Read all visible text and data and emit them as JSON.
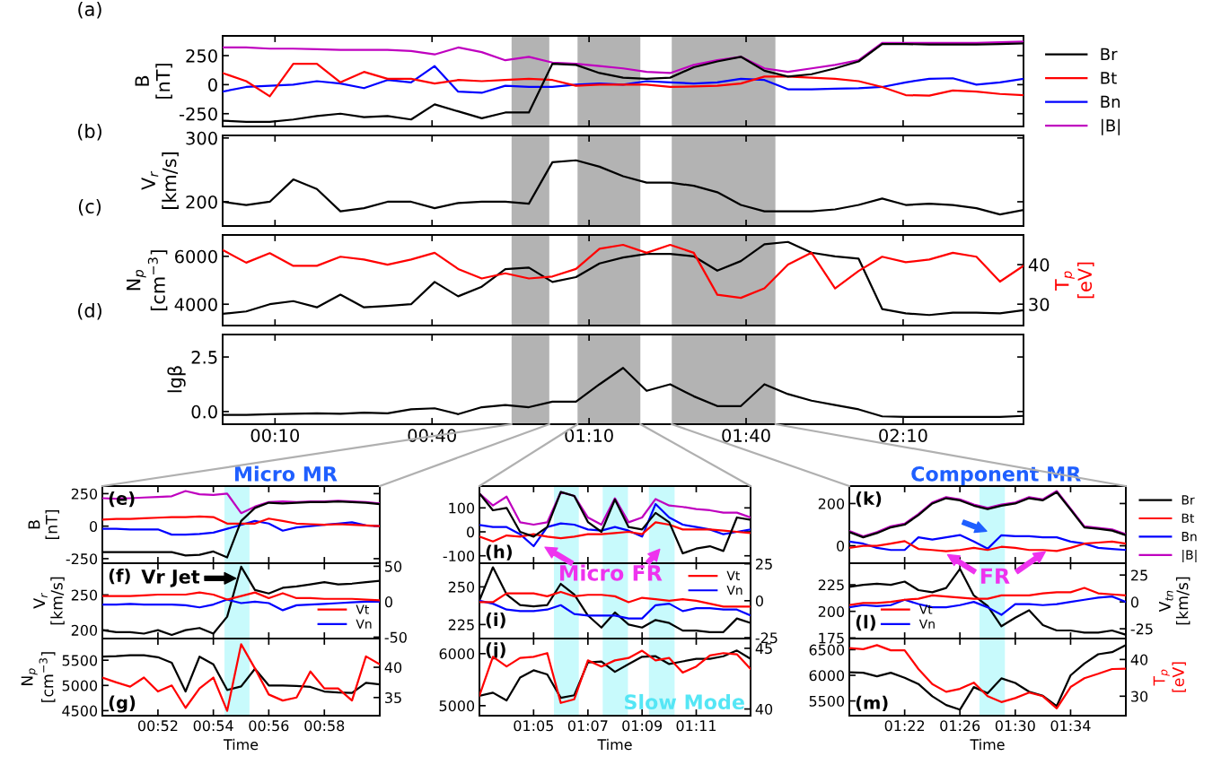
{
  "chart_data": [
    {
      "type": "line",
      "ylabel": "B\n[nT]",
      "annotations": [
        "(a)"
      ],
      "x": [
        0,
        0.075,
        0.15,
        0.225,
        0.3,
        0.375,
        0.45,
        0.525,
        0.6,
        0.675,
        0.75,
        0.825,
        0.9,
        0.975,
        1.05,
        1.125,
        1.2,
        1.275,
        1.35,
        1.425,
        1.5,
        1.575,
        1.65,
        1.725,
        1.8,
        1.875,
        1.95,
        2.025,
        2.1,
        2.175,
        2.25,
        2.325,
        2.4,
        2.475,
        2.55
      ],
      "xlim": [
        0,
        2.55
      ],
      "xticks": [
        {
          "value": 0.1667,
          "label": null
        },
        {
          "value": 0.6667,
          "label": null
        },
        {
          "value": 1.1667,
          "label": null
        },
        {
          "value": 1.6667,
          "label": null
        },
        {
          "value": 2.1667,
          "label": null
        }
      ],
      "ylim": [
        -360,
        420
      ],
      "yticks": [
        -250,
        0,
        250
      ],
      "tick_labels": "y",
      "legend": "right",
      "bands": [
        {
          "axis": "x",
          "from": 0.92,
          "to": 1.04,
          "color": "#b3b3b3"
        },
        {
          "axis": "x",
          "from": 1.13,
          "to": 1.33,
          "color": "#b3b3b3"
        },
        {
          "axis": "x",
          "from": 1.43,
          "to": 1.76,
          "color": "#b3b3b3"
        }
      ],
      "series": [
        {
          "name": "Br",
          "color": "#000000",
          "values": [
            -310,
            -320,
            -320,
            -300,
            -270,
            -250,
            -280,
            -270,
            -300,
            -170,
            -230,
            -290,
            -240,
            -240,
            180,
            170,
            100,
            60,
            50,
            60,
            150,
            200,
            240,
            120,
            70,
            90,
            140,
            200,
            350,
            350,
            345,
            345,
            345,
            350,
            355
          ]
        },
        {
          "name": "Bt",
          "color": "#ff0000",
          "values": [
            100,
            30,
            -100,
            180,
            180,
            20,
            110,
            50,
            50,
            10,
            40,
            30,
            40,
            50,
            40,
            -10,
            0,
            0,
            0,
            -20,
            -15,
            -10,
            10,
            70,
            70,
            60,
            50,
            30,
            -20,
            -90,
            -95,
            -50,
            -60,
            -80,
            -90
          ]
        },
        {
          "name": "Bn",
          "color": "#0000ff",
          "values": [
            -60,
            -20,
            -10,
            0,
            30,
            10,
            -30,
            40,
            20,
            160,
            -60,
            -70,
            -10,
            -20,
            -20,
            0,
            10,
            0,
            30,
            20,
            10,
            20,
            50,
            40,
            -40,
            -40,
            -35,
            -30,
            -20,
            20,
            50,
            55,
            0,
            20,
            50
          ]
        },
        {
          "name": "|B|",
          "color": "#bf00bf",
          "values": [
            320,
            320,
            310,
            310,
            305,
            300,
            300,
            300,
            290,
            260,
            320,
            280,
            210,
            240,
            190,
            180,
            160,
            140,
            110,
            100,
            170,
            210,
            240,
            140,
            110,
            140,
            170,
            210,
            360,
            360,
            360,
            360,
            360,
            365,
            370
          ]
        }
      ]
    },
    {
      "type": "line",
      "ylabel": "V$_{r}$\n[km/s]",
      "annotations": [
        "(b)"
      ],
      "x": [
        0,
        0.075,
        0.15,
        0.225,
        0.3,
        0.375,
        0.45,
        0.525,
        0.6,
        0.675,
        0.75,
        0.825,
        0.9,
        0.975,
        1.05,
        1.125,
        1.2,
        1.275,
        1.35,
        1.425,
        1.5,
        1.575,
        1.65,
        1.725,
        1.8,
        1.875,
        1.95,
        2.025,
        2.1,
        2.175,
        2.25,
        2.325,
        2.4,
        2.475,
        2.55
      ],
      "xlim": [
        0,
        2.55
      ],
      "xticks": [
        {
          "value": 0.1667,
          "label": null
        },
        {
          "value": 0.6667,
          "label": null
        },
        {
          "value": 1.1667,
          "label": null
        },
        {
          "value": 1.6667,
          "label": null
        },
        {
          "value": 2.1667,
          "label": null
        }
      ],
      "ylim": [
        162,
        304
      ],
      "yticks": [
        200,
        300
      ],
      "tick_labels": "y",
      "bands": [
        {
          "axis": "x",
          "from": 0.92,
          "to": 1.04,
          "color": "#b3b3b3"
        },
        {
          "axis": "x",
          "from": 1.13,
          "to": 1.33,
          "color": "#b3b3b3"
        },
        {
          "axis": "x",
          "from": 1.43,
          "to": 1.76,
          "color": "#b3b3b3"
        }
      ],
      "series": [
        {
          "color": "#000000",
          "values": [
            200,
            195,
            200,
            235,
            220,
            185,
            190,
            200,
            200,
            190,
            198,
            200,
            200,
            197,
            262,
            265,
            255,
            240,
            230,
            230,
            225,
            215,
            195,
            185,
            185,
            185,
            188,
            195,
            205,
            195,
            197,
            195,
            190,
            180,
            187
          ]
        }
      ]
    },
    {
      "type": "line",
      "ylabel": "N$_{p}$\n[cm$^{−3}$]",
      "y2label": "T$_{p}$\n[eV]",
      "annotations": [
        "(c)"
      ],
      "x": [
        0,
        0.075,
        0.15,
        0.225,
        0.3,
        0.375,
        0.45,
        0.525,
        0.6,
        0.675,
        0.75,
        0.825,
        0.9,
        0.975,
        1.05,
        1.125,
        1.2,
        1.275,
        1.35,
        1.425,
        1.5,
        1.575,
        1.65,
        1.725,
        1.8,
        1.875,
        1.95,
        2.025,
        2.1,
        2.175,
        2.25,
        2.325,
        2.4,
        2.475,
        2.55
      ],
      "xlim": [
        0,
        2.55
      ],
      "xticks": [
        {
          "value": 0.1667,
          "label": null
        },
        {
          "value": 0.6667,
          "label": null
        },
        {
          "value": 1.1667,
          "label": null
        },
        {
          "value": 1.6667,
          "label": null
        },
        {
          "value": 2.1667,
          "label": null
        }
      ],
      "ylim": [
        3110,
        6890
      ],
      "yticks": [
        4000,
        6000
      ],
      "y2lim": [
        24.6,
        47.5
      ],
      "y2ticks": [
        30,
        40
      ],
      "tick_labels": "y",
      "bands": [
        {
          "axis": "x",
          "from": 0.92,
          "to": 1.04,
          "color": "#b3b3b3"
        },
        {
          "axis": "x",
          "from": 1.13,
          "to": 1.33,
          "color": "#b3b3b3"
        },
        {
          "axis": "x",
          "from": 1.43,
          "to": 1.76,
          "color": "#b3b3b3"
        }
      ],
      "series": [
        {
          "color": "#000000",
          "values": [
            3600,
            3700,
            4000,
            4130,
            3870,
            4400,
            3870,
            3930,
            4000,
            4930,
            4330,
            4730,
            5460,
            5530,
            4930,
            5130,
            5700,
            5950,
            6100,
            6100,
            6000,
            5400,
            5800,
            6500,
            6600,
            6150,
            6000,
            5900,
            3800,
            3620,
            3550,
            3650,
            3650,
            3620,
            3750
          ]
        },
        {
          "color": "#ff0000",
          "axis": "y2",
          "values": [
            43.7,
            40.5,
            42.9,
            39.7,
            39.7,
            42,
            41.3,
            40,
            41.3,
            43,
            38.9,
            36.5,
            37.8,
            36.5,
            37,
            38.9,
            44,
            45,
            43,
            45,
            43,
            32.4,
            31.6,
            34,
            40,
            43,
            34,
            38.4,
            42,
            40.6,
            41.3,
            43,
            42,
            35.7,
            39.7
          ]
        }
      ]
    },
    {
      "type": "line",
      "ylabel": "lgβ",
      "annotations": [
        "(d)"
      ],
      "x": [
        0,
        0.075,
        0.15,
        0.225,
        0.3,
        0.375,
        0.45,
        0.525,
        0.6,
        0.675,
        0.75,
        0.825,
        0.9,
        0.975,
        1.05,
        1.125,
        1.2,
        1.275,
        1.35,
        1.425,
        1.5,
        1.575,
        1.65,
        1.725,
        1.8,
        1.875,
        1.95,
        2.025,
        2.1,
        2.175,
        2.25,
        2.325,
        2.4,
        2.475,
        2.55
      ],
      "xlim": [
        0,
        2.55
      ],
      "xticks": [
        {
          "value": 0.1667,
          "label": "00:10"
        },
        {
          "value": 0.6667,
          "label": "00:40"
        },
        {
          "value": 1.1667,
          "label": "01:10"
        },
        {
          "value": 1.6667,
          "label": "01:40"
        },
        {
          "value": 2.1667,
          "label": "02:10"
        }
      ],
      "ylim": [
        -0.58,
        3.53
      ],
      "yticks": [
        {
          "value": 0,
          "label": "0.0"
        },
        {
          "value": 2.5,
          "label": "2.5"
        }
      ],
      "bands": [
        {
          "axis": "x",
          "from": 0.92,
          "to": 1.04,
          "color": "#b3b3b3"
        },
        {
          "axis": "x",
          "from": 1.13,
          "to": 1.33,
          "color": "#b3b3b3"
        },
        {
          "axis": "x",
          "from": 1.43,
          "to": 1.76,
          "color": "#b3b3b3"
        }
      ],
      "series": [
        {
          "color": "#000000",
          "values": [
            -0.15,
            -0.15,
            -0.12,
            -0.1,
            -0.08,
            -0.1,
            -0.05,
            -0.08,
            0.1,
            0.15,
            -0.12,
            0.2,
            0.3,
            0.2,
            0.45,
            0.45,
            1.25,
            2.0,
            0.95,
            1.25,
            0.7,
            0.25,
            0.25,
            1.25,
            0.8,
            0.5,
            0.3,
            0.1,
            -0.22,
            -0.25,
            -0.25,
            -0.25,
            -0.25,
            -0.25,
            -0.2
          ]
        }
      ]
    },
    {
      "type": "line",
      "title": "Micro MR",
      "ylabel": "B\n[nT]",
      "annotations": [
        "(e)"
      ],
      "x": [
        0.8333,
        0.8417,
        0.85,
        0.8583,
        0.8667,
        0.875,
        0.8833,
        0.8917,
        0.9,
        0.9083,
        0.9167,
        0.925,
        0.9333,
        0.9417,
        0.95,
        0.9583,
        0.9667,
        0.975,
        0.9833,
        0.9917,
        1.0
      ],
      "xlim": [
        0.8333,
        1.0
      ],
      "xticks": [
        {
          "value": 0.8667,
          "label": null
        },
        {
          "value": 0.9,
          "label": null
        },
        {
          "value": 0.9333,
          "label": null
        },
        {
          "value": 0.9667,
          "label": null
        }
      ],
      "ylim": [
        -285,
        308
      ],
      "yticks": [
        -250,
        0,
        250
      ],
      "tick_labels": "y",
      "bands": [
        {
          "axis": "x",
          "from": 0.9067,
          "to": 0.9217,
          "color": "#c8fafc"
        }
      ],
      "series": [
        {
          "color": "#000000",
          "values": [
            -200,
            -200,
            -200,
            -200,
            -200,
            -200,
            -225,
            -220,
            -195,
            -240,
            40,
            140,
            180,
            175,
            180,
            185,
            185,
            190,
            185,
            180,
            170
          ]
        },
        {
          "color": "#ff0000",
          "values": [
            50,
            55,
            55,
            60,
            65,
            70,
            70,
            75,
            70,
            20,
            20,
            20,
            58,
            40,
            20,
            15,
            10,
            15,
            10,
            5,
            0
          ]
        },
        {
          "color": "#0000ff",
          "values": [
            -20,
            -20,
            -25,
            -25,
            -25,
            -65,
            -65,
            -60,
            -50,
            -20,
            10,
            40,
            20,
            -35,
            -10,
            0,
            10,
            20,
            30,
            5,
            0
          ]
        },
        {
          "color": "#bf00bf",
          "values": [
            215,
            210,
            215,
            220,
            225,
            230,
            270,
            245,
            240,
            250,
            100,
            150,
            185,
            190,
            185,
            190,
            190,
            195,
            190,
            185,
            175
          ]
        }
      ]
    },
    {
      "type": "line",
      "annotations": [
        "(h)",
        "Micro FR"
      ],
      "x": [
        1.05,
        1.0583,
        1.0667,
        1.075,
        1.0833,
        1.0917,
        1.1,
        1.1083,
        1.1167,
        1.125,
        1.1333,
        1.1417,
        1.15,
        1.1583,
        1.1667,
        1.175,
        1.1833,
        1.1917,
        1.2,
        1.2083,
        1.2167
      ],
      "xlim": [
        1.05,
        1.2167
      ],
      "xticks": [
        {
          "value": 1.0833,
          "label": null
        },
        {
          "value": 1.1167,
          "label": null
        },
        {
          "value": 1.15,
          "label": null
        },
        {
          "value": 1.1833,
          "label": null
        }
      ],
      "ylim": [
        -131,
        191
      ],
      "yticks": [
        -100,
        0,
        100
      ],
      "tick_labels": "y",
      "bands": [
        {
          "axis": "x",
          "from": 1.0958,
          "to": 1.1111,
          "color": "#c8fafc"
        },
        {
          "axis": "x",
          "from": 1.1258,
          "to": 1.1413,
          "color": "#c8fafc"
        },
        {
          "axis": "x",
          "from": 1.1542,
          "to": 1.17,
          "color": "#c8fafc"
        }
      ],
      "series": [
        {
          "color": "#000000",
          "values": [
            160,
            90,
            100,
            0,
            -20,
            20,
            166,
            150,
            41,
            0,
            135,
            20,
            10,
            79,
            40,
            -90,
            -70,
            -60,
            -80,
            60,
            50
          ]
        },
        {
          "color": "#ff0000",
          "values": [
            -20,
            -40,
            -15,
            -20,
            -10,
            -20,
            -27,
            -20,
            -10,
            -10,
            -5,
            0,
            -10,
            40,
            30,
            10,
            10,
            10,
            5,
            0,
            -5
          ]
        },
        {
          "color": "#0000ff",
          "values": [
            29,
            20,
            20,
            -10,
            -60,
            20,
            35,
            30,
            10,
            5,
            20,
            5,
            -20,
            116,
            60,
            30,
            20,
            10,
            -10,
            0,
            10
          ]
        },
        {
          "color": "#bf00bf",
          "values": [
            160,
            110,
            147,
            40,
            30,
            40,
            166,
            150,
            60,
            30,
            140,
            40,
            60,
            137,
            110,
            104,
            95,
            90,
            80,
            80,
            60
          ]
        }
      ]
    },
    {
      "type": "line",
      "title": "Component MR",
      "annotations": [
        "(k)",
        "FR"
      ],
      "x": [
        1.3,
        1.3167,
        1.3333,
        1.35,
        1.3667,
        1.3833,
        1.4,
        1.4167,
        1.4333,
        1.45,
        1.4667,
        1.4833,
        1.5,
        1.5167,
        1.5333,
        1.55,
        1.5667,
        1.5833,
        1.6,
        1.6167,
        1.6333
      ],
      "xlim": [
        1.3,
        1.6333
      ],
      "xticks": [
        {
          "value": 1.3667,
          "label": null
        },
        {
          "value": 1.4333,
          "label": null
        },
        {
          "value": 1.5,
          "label": null
        },
        {
          "value": 1.5667,
          "label": null
        }
      ],
      "ylim": [
        -82.6,
        282.6
      ],
      "yticks": [
        0,
        200
      ],
      "tick_labels": "y",
      "legend": "right",
      "bands": [
        {
          "axis": "x",
          "from": 1.4569,
          "to": 1.4875,
          "color": "#c8fafc"
        }
      ],
      "series": [
        {
          "name": "Br",
          "color": "#000000",
          "values": [
            65,
            40,
            60,
            87,
            100,
            145,
            200,
            225,
            215,
            190,
            174,
            190,
            200,
            225,
            215,
            254,
            171,
            87,
            80,
            72,
            50
          ]
        },
        {
          "name": "Bt",
          "color": "#ff0000",
          "values": [
            -10,
            0,
            0,
            10,
            22,
            -15,
            -20,
            -26,
            -20,
            -10,
            -20,
            -5,
            -10,
            -20,
            -20,
            -25,
            -10,
            10,
            15,
            20,
            10
          ]
        },
        {
          "name": "Bn",
          "color": "#0000ff",
          "values": [
            20,
            10,
            -10,
            -20,
            -20,
            40,
            29,
            40,
            51,
            20,
            -14,
            50,
            45,
            45,
            40,
            40,
            20,
            10,
            -10,
            -15,
            -20
          ]
        },
        {
          "name": "|B|",
          "color": "#bf00bf",
          "values": [
            70,
            45,
            65,
            92,
            105,
            150,
            205,
            230,
            220,
            195,
            179,
            195,
            205,
            230,
            220,
            259,
            176,
            92,
            85,
            77,
            55
          ]
        }
      ]
    },
    {
      "type": "line",
      "ylabel": "V$_{r}$\n[km/s]",
      "annotations": [
        "(f)",
        "Vr Jet"
      ],
      "x": [
        0.8333,
        0.8417,
        0.85,
        0.8583,
        0.8667,
        0.875,
        0.8833,
        0.8917,
        0.9,
        0.9083,
        0.9167,
        0.925,
        0.9333,
        0.9417,
        0.95,
        0.9583,
        0.9667,
        0.975,
        0.9833,
        0.9917,
        1.0
      ],
      "xlim": [
        0.8333,
        1.0
      ],
      "xticks": [
        {
          "value": 0.8667,
          "label": null
        },
        {
          "value": 0.9,
          "label": null
        },
        {
          "value": 0.9333,
          "label": null
        },
        {
          "value": 0.9667,
          "label": null
        }
      ],
      "ylim": [
        188,
        295
      ],
      "yticks": [
        200,
        250
      ],
      "y2lim": [
        -52,
        54.3
      ],
      "y2ticks": [
        -50,
        0,
        50
      ],
      "tick_labels": "y",
      "legend": "bottom right",
      "bands": [
        {
          "axis": "x",
          "from": 0.9067,
          "to": 0.9217,
          "color": "#c8fafc"
        }
      ],
      "series": [
        {
          "color": "#000000",
          "values": [
            200,
            197,
            197,
            195,
            200,
            193,
            200,
            203,
            195,
            219,
            290,
            257,
            252,
            260,
            262,
            265,
            268,
            265,
            266,
            268,
            270
          ]
        },
        {
          "name": "Vt",
          "color": "#ff0000",
          "axis": "y2",
          "values": [
            8,
            8,
            8,
            9,
            10,
            10,
            10,
            13,
            10,
            3,
            8,
            13,
            5,
            12,
            5,
            5,
            4,
            4,
            4,
            3,
            2
          ]
        },
        {
          "name": "Vn",
          "color": "#0000ff",
          "axis": "y2",
          "values": [
            -4,
            -4,
            -3,
            -4,
            -4,
            -4,
            -5,
            -8,
            -4,
            3,
            -2,
            0,
            -2,
            -12,
            -5,
            -4,
            -3,
            -2,
            -1,
            0,
            0
          ]
        }
      ]
    },
    {
      "type": "line",
      "annotations": [
        "(i)"
      ],
      "x": [
        1.05,
        1.0583,
        1.0667,
        1.075,
        1.0833,
        1.0917,
        1.1,
        1.1083,
        1.1167,
        1.125,
        1.1333,
        1.1417,
        1.15,
        1.1583,
        1.1667,
        1.175,
        1.1833,
        1.1917,
        1.2,
        1.2083,
        1.2167
      ],
      "xlim": [
        1.05,
        1.2167
      ],
      "xticks": [
        {
          "value": 1.0833,
          "label": null
        },
        {
          "value": 1.1167,
          "label": null
        },
        {
          "value": 1.15,
          "label": null
        },
        {
          "value": 1.1833,
          "label": null
        }
      ],
      "ylim": [
        215.7,
        265.7
      ],
      "yticks": [
        225,
        250
      ],
      "y2lim": [
        -25.6,
        25.4
      ],
      "y2ticks": [
        -25,
        0,
        25
      ],
      "tick_labels": "y",
      "legend": "top right",
      "bands": [
        {
          "axis": "x",
          "from": 1.0958,
          "to": 1.1111,
          "color": "#c8fafc"
        },
        {
          "axis": "x",
          "from": 1.1258,
          "to": 1.1413,
          "color": "#c8fafc"
        },
        {
          "axis": "x",
          "from": 1.1542,
          "to": 1.17,
          "color": "#c8fafc"
        }
      ],
      "series": [
        {
          "color": "#000000",
          "values": [
            241,
            263,
            245,
            238,
            237,
            238,
            252,
            245,
            231,
            223,
            233,
            225,
            223,
            228,
            226,
            221,
            221,
            220,
            220,
            229,
            226
          ]
        },
        {
          "name": "Vt",
          "color": "#ff0000",
          "axis": "y2",
          "values": [
            -1,
            -1,
            5,
            5,
            5,
            3,
            6,
            3,
            4,
            4,
            3,
            -1,
            2,
            1,
            0,
            1,
            0,
            -2,
            -4,
            -4,
            -4
          ]
        },
        {
          "name": "Vn",
          "color": "#0000ff",
          "axis": "y2",
          "values": [
            0,
            -2,
            -6,
            -7,
            -7,
            -6,
            -3,
            -9,
            -10,
            -10,
            -10,
            -12,
            -12,
            -3,
            -2,
            -7,
            -5,
            -5,
            -6,
            -6,
            -10
          ]
        }
      ]
    },
    {
      "type": "line",
      "y2label": "V$_{tn}$\n[km/s]",
      "annotations": [
        "(l)"
      ],
      "x": [
        1.3,
        1.3167,
        1.3333,
        1.35,
        1.3667,
        1.3833,
        1.4,
        1.4167,
        1.4333,
        1.45,
        1.4667,
        1.4833,
        1.5,
        1.5167,
        1.5333,
        1.55,
        1.5667,
        1.5833,
        1.6,
        1.6167,
        1.6333
      ],
      "xlim": [
        1.3,
        1.6333
      ],
      "xticks": [
        {
          "value": 1.3667,
          "label": null
        },
        {
          "value": 1.4333,
          "label": null
        },
        {
          "value": 1.5,
          "label": null
        },
        {
          "value": 1.5667,
          "label": null
        }
      ],
      "ylim": [
        174.4,
        245.3
      ],
      "yticks": [
        175,
        200,
        225
      ],
      "y2lim": [
        -34.1,
        36
      ],
      "y2ticks": [
        -25,
        0,
        25
      ],
      "tick_labels": "y",
      "legend": "bottom left",
      "bands": [
        {
          "axis": "x",
          "from": 1.4569,
          "to": 1.4875,
          "color": "#c8fafc"
        }
      ],
      "series": [
        {
          "color": "#000000",
          "values": [
            223,
            225,
            226,
            225,
            228,
            220,
            218,
            222,
            240,
            215,
            205,
            186,
            194,
            201,
            187,
            182,
            182,
            180,
            180,
            182,
            178
          ]
        },
        {
          "name": "Vt",
          "color": "#ff0000",
          "axis": "y2",
          "values": [
            -3,
            -1,
            -1,
            0,
            2,
            3,
            6,
            5,
            4,
            3,
            3,
            6,
            6,
            6,
            8,
            9,
            9,
            13,
            8,
            7,
            6
          ]
        },
        {
          "name": "Vn",
          "color": "#0000ff",
          "axis": "y2",
          "values": [
            -5,
            -3,
            -4,
            -3,
            2,
            -2,
            -5,
            -5,
            -3,
            0,
            -5,
            -12,
            -2,
            -2,
            -3,
            -2,
            0,
            2,
            4,
            5,
            0
          ]
        }
      ]
    },
    {
      "type": "line",
      "ylabel": "N$_{p}$\n[cm$^{−3}$]",
      "xlabel": "Time",
      "annotations": [
        "(g)"
      ],
      "x": [
        0.8333,
        0.8417,
        0.85,
        0.8583,
        0.8667,
        0.875,
        0.8833,
        0.8917,
        0.9,
        0.9083,
        0.9167,
        0.925,
        0.9333,
        0.9417,
        0.95,
        0.9583,
        0.9667,
        0.975,
        0.9833,
        0.9917,
        1.0
      ],
      "xlim": [
        0.8333,
        1.0
      ],
      "xticks": [
        {
          "value": 0.8667,
          "label": "00:52"
        },
        {
          "value": 0.9,
          "label": "00:54"
        },
        {
          "value": 0.9333,
          "label": "00:56"
        },
        {
          "value": 0.9667,
          "label": "00:58"
        }
      ],
      "ylim": [
        4400,
        5930
      ],
      "yticks": [
        4500,
        5000,
        5500
      ],
      "y2lim": [
        32,
        44.75
      ],
      "y2ticks": [
        35,
        40
      ],
      "bands": [
        {
          "axis": "x",
          "from": 0.9067,
          "to": 0.9217,
          "color": "#c8fafc"
        }
      ],
      "series": [
        {
          "color": "#000000",
          "values": [
            5570,
            5580,
            5600,
            5600,
            5560,
            5450,
            4880,
            5570,
            5420,
            4910,
            4980,
            5330,
            5000,
            5000,
            4990,
            4970,
            4880,
            4860,
            4850,
            5050,
            5020
          ]
        },
        {
          "color": "#ff0000",
          "axis": "y2",
          "values": [
            38.3,
            37.5,
            36.8,
            38.3,
            36,
            37,
            33.3,
            36.5,
            38.3,
            32.8,
            43.8,
            39.8,
            35.5,
            34.5,
            35,
            39.3,
            36.5,
            36.5,
            34.5,
            41.8,
            40.5
          ]
        }
      ]
    },
    {
      "type": "line",
      "xlabel": "Time",
      "annotations": [
        "(j)",
        "Slow Mode"
      ],
      "x": [
        1.05,
        1.0583,
        1.0667,
        1.075,
        1.0833,
        1.0917,
        1.1,
        1.1083,
        1.1167,
        1.125,
        1.1333,
        1.1417,
        1.15,
        1.1583,
        1.1667,
        1.175,
        1.1833,
        1.1917,
        1.2,
        1.2083,
        1.2167
      ],
      "xlim": [
        1.05,
        1.2167
      ],
      "xticks": [
        {
          "value": 1.0833,
          "label": "01:05"
        },
        {
          "value": 1.1167,
          "label": "01:07"
        },
        {
          "value": 1.15,
          "label": "01:09"
        },
        {
          "value": 1.1833,
          "label": "01:11"
        }
      ],
      "ylim": [
        4808,
        6290
      ],
      "yticks": [
        5000,
        6000
      ],
      "y2lim": [
        39.45,
        45.8
      ],
      "y2ticks": [
        40,
        45
      ],
      "bands": [
        {
          "axis": "x",
          "from": 1.0958,
          "to": 1.1111,
          "color": "#c8fafc"
        },
        {
          "axis": "x",
          "from": 1.1258,
          "to": 1.1413,
          "color": "#c8fafc"
        },
        {
          "axis": "x",
          "from": 1.1542,
          "to": 1.17,
          "color": "#c8fafc"
        }
      ],
      "series": [
        {
          "color": "#000000",
          "values": [
            5190,
            5250,
            5100,
            5540,
            5680,
            5600,
            5150,
            5200,
            5830,
            5850,
            5650,
            5800,
            5940,
            5950,
            5800,
            5850,
            5900,
            5900,
            5950,
            6060,
            5900
          ]
        },
        {
          "color": "#ff0000",
          "axis": "y2",
          "values": [
            41.1,
            44.3,
            43.5,
            44.2,
            44.3,
            44.6,
            40.5,
            40.8,
            44,
            43.5,
            44,
            44.2,
            44.8,
            44,
            44.2,
            43,
            43.5,
            44.4,
            44.6,
            44.5,
            43.3
          ]
        }
      ]
    },
    {
      "type": "line",
      "xlabel": "Time",
      "y2label": "T$_{p}$\n[eV]",
      "annotations": [
        "(m)"
      ],
      "x": [
        1.3,
        1.3167,
        1.3333,
        1.35,
        1.3667,
        1.3833,
        1.4,
        1.4167,
        1.4333,
        1.45,
        1.4667,
        1.4833,
        1.5,
        1.5167,
        1.5333,
        1.55,
        1.5667,
        1.5833,
        1.6,
        1.6167,
        1.6333
      ],
      "xlim": [
        1.3,
        1.6333
      ],
      "xticks": [
        {
          "value": 1.3667,
          "label": "01:22"
        },
        {
          "value": 1.4333,
          "label": "01:26"
        },
        {
          "value": 1.5,
          "label": "01:30"
        },
        {
          "value": 1.5667,
          "label": "01:34"
        }
      ],
      "ylim": [
        5213,
        6716
      ],
      "yticks": [
        5500,
        6000,
        6500
      ],
      "y2lim": [
        24.7,
        45.7
      ],
      "y2ticks": [
        30,
        40
      ],
      "bands": [
        {
          "axis": "x",
          "from": 1.4569,
          "to": 1.4875,
          "color": "#c8fafc"
        }
      ],
      "series": [
        {
          "color": "#000000",
          "values": [
            6060,
            6050,
            5980,
            6050,
            5950,
            5830,
            5590,
            5420,
            5330,
            5770,
            5650,
            5940,
            5850,
            5680,
            5600,
            5400,
            6000,
            6230,
            6410,
            6450,
            6590
          ]
        },
        {
          "color": "#ff0000",
          "axis": "y2",
          "values": [
            43.1,
            42.8,
            43.9,
            42.5,
            42.5,
            37.4,
            33.3,
            31.2,
            32,
            33.7,
            30,
            28.4,
            29.5,
            31,
            30,
            26.7,
            32.5,
            34.9,
            36.1,
            37.4,
            37.5
          ]
        }
      ]
    }
  ]
}
